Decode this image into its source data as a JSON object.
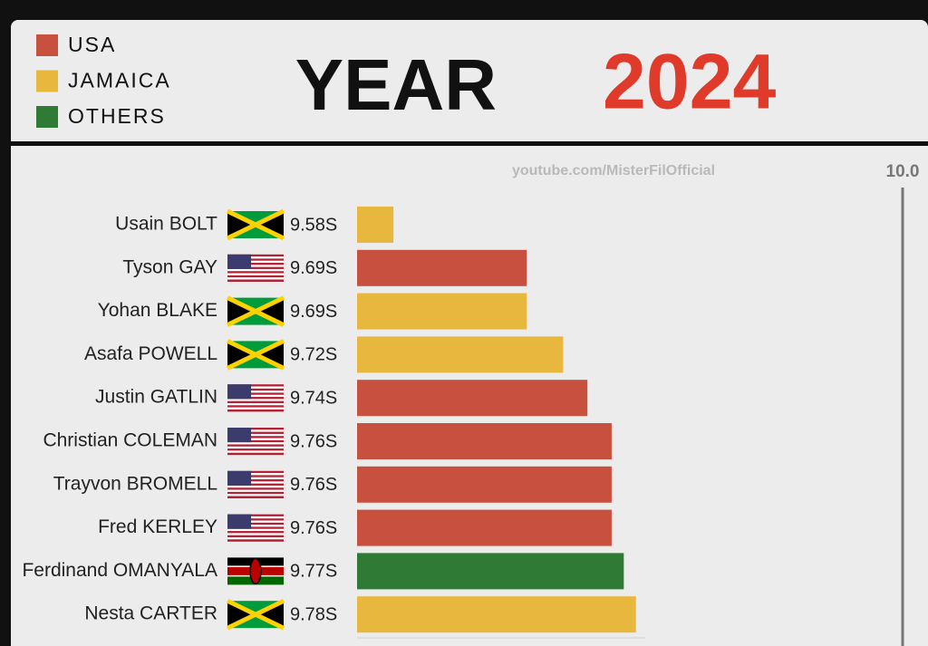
{
  "chart_data": {
    "type": "barh",
    "title": "YEAR",
    "title_highlight": "2024",
    "watermark": "youtube.com/MisterFilOfficial",
    "legend": [
      {
        "name": "USA",
        "color": "#c8503f"
      },
      {
        "name": "JAMAICA",
        "color": "#e8b73e"
      },
      {
        "name": "OTHERS",
        "color": "#2f7a35"
      }
    ],
    "categories": [
      "Usain BOLT",
      "Tyson GAY",
      "Yohan BLAKE",
      "Asafa POWELL",
      "Justin GATLIN",
      "Christian COLEMAN",
      "Trayvon BROMELL",
      "Fred KERLEY",
      "Ferdinand OMANYALA",
      "Nesta CARTER"
    ],
    "values": [
      9.58,
      9.69,
      9.69,
      9.72,
      9.74,
      9.76,
      9.76,
      9.76,
      9.77,
      9.78
    ],
    "value_labels": [
      "9.58S",
      "9.69S",
      "9.69S",
      "9.72S",
      "9.74S",
      "9.76S",
      "9.76S",
      "9.76S",
      "9.77S",
      "9.78S"
    ],
    "colors": [
      "#e8b73e",
      "#c8503f",
      "#e8b73e",
      "#e8b73e",
      "#c8503f",
      "#c8503f",
      "#c8503f",
      "#c8503f",
      "#2f7a35",
      "#e8b73e"
    ],
    "xlim": [
      9.55,
      10.0
    ],
    "xticks": [
      {
        "value": 10.0,
        "label": "10.0"
      }
    ]
  }
}
